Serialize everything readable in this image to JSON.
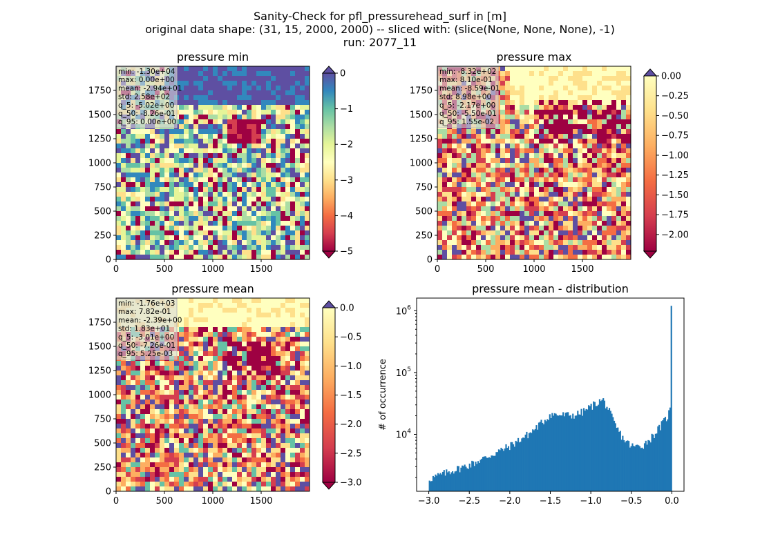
{
  "figure": {
    "title_lines": [
      "Sanity-Check for pfl_pressurehead_surf in [m]",
      "original data shape: (31, 15, 2000, 2000) -- sliced with: (slice(None, None, None), -1)",
      "run: 2077_11"
    ]
  },
  "chart_data": [
    {
      "type": "heatmap",
      "title": "pressure min",
      "x_ticks": [
        "0",
        "500",
        "1000",
        "1500"
      ],
      "y_ticks": [
        "0",
        "250",
        "500",
        "750",
        "1000",
        "1250",
        "1500",
        "1750"
      ],
      "xlim": [
        0,
        2000
      ],
      "ylim": [
        0,
        2000
      ],
      "colorbar": {
        "ticks": [
          "0",
          "−1",
          "−2",
          "−3",
          "−4",
          "−5"
        ],
        "vmin": -5,
        "vmax": 0,
        "extend": "both",
        "colormap": "Spectral"
      },
      "stats": [
        "min: -1.30e+04",
        "max: 0.00e+00",
        "mean: -2.94e+01",
        "std: 2.58e+02",
        "q_5: -5.02e+00",
        "q_50: -8.26e-01",
        "q_95: 0.00e+00"
      ]
    },
    {
      "type": "heatmap",
      "title": "pressure max",
      "x_ticks": [
        "0",
        "500",
        "1000",
        "1500"
      ],
      "y_ticks": [
        "0",
        "250",
        "500",
        "750",
        "1000",
        "1250",
        "1500",
        "1750"
      ],
      "xlim": [
        0,
        2000
      ],
      "ylim": [
        0,
        2000
      ],
      "colorbar": {
        "ticks": [
          "0.00",
          "−0.25",
          "−0.50",
          "−0.75",
          "−1.00",
          "−1.25",
          "−1.50",
          "−1.75",
          "−2.00"
        ],
        "vmin": -2.21,
        "vmax": 0,
        "extend": "both",
        "colormap": "Spectral"
      },
      "stats": [
        "min: -8.32e+02",
        "max: 8.10e-01",
        "mean: -8.59e-01",
        "std: 8.98e+00",
        "q_5: -2.17e+00",
        "q_50: -5.50e-01",
        "q_95: 1.55e-02"
      ]
    },
    {
      "type": "heatmap",
      "title": "pressure mean",
      "x_ticks": [
        "0",
        "500",
        "1000",
        "1500"
      ],
      "y_ticks": [
        "0",
        "250",
        "500",
        "750",
        "1000",
        "1250",
        "1500",
        "1750"
      ],
      "xlim": [
        0,
        2000
      ],
      "ylim": [
        0,
        2000
      ],
      "colorbar": {
        "ticks": [
          "0.0",
          "−0.5",
          "−1.0",
          "−1.5",
          "−2.0",
          "−2.5",
          "−3.0"
        ],
        "vmin": -3.0,
        "vmax": 0,
        "extend": "both",
        "colormap": "Spectral"
      },
      "stats": [
        "min: -1.76e+03",
        "max: 7.82e-01",
        "mean: -2.39e+00",
        "std: 1.83e+01",
        "q_5: -3.01e+00",
        "q_50: -7.26e-01",
        "q_95: 5.25e-03"
      ]
    },
    {
      "type": "bar",
      "title": "pressure mean - distribution",
      "ylabel": "# of occurrence",
      "xlabel": "",
      "yscale": "log",
      "xlim": [
        -3.15,
        0.15
      ],
      "ylim": [
        1200,
        1600000
      ],
      "x_ticks": [
        "−3.0",
        "−2.5",
        "−2.0",
        "−1.5",
        "−1.0",
        "−0.5",
        "0.0"
      ],
      "y_ticks": [
        "10^6",
        "10^5",
        "10^4"
      ],
      "color": "#1f77b4",
      "bins": {
        "start": -3.0,
        "end": 0.0,
        "count": 200
      },
      "envelope": [
        [
          -3.0,
          1900
        ],
        [
          -2.9,
          2100
        ],
        [
          -2.75,
          2500
        ],
        [
          -2.5,
          3200
        ],
        [
          -2.25,
          4500
        ],
        [
          -2.0,
          6500
        ],
        [
          -1.75,
          10500
        ],
        [
          -1.55,
          18000
        ],
        [
          -1.5,
          21000
        ],
        [
          -1.35,
          20500
        ],
        [
          -1.2,
          20500
        ],
        [
          -1.1,
          23000
        ],
        [
          -0.97,
          30000
        ],
        [
          -0.9,
          34000
        ],
        [
          -0.85,
          36000
        ],
        [
          -0.8,
          28000
        ],
        [
          -0.75,
          20000
        ],
        [
          -0.7,
          14000
        ],
        [
          -0.6,
          8500
        ],
        [
          -0.5,
          6500
        ],
        [
          -0.45,
          6300
        ],
        [
          -0.35,
          6800
        ],
        [
          -0.25,
          9000
        ],
        [
          -0.15,
          13000
        ],
        [
          -0.05,
          20000
        ],
        [
          -0.01,
          28000
        ],
        [
          0.0,
          1200000
        ]
      ]
    }
  ]
}
